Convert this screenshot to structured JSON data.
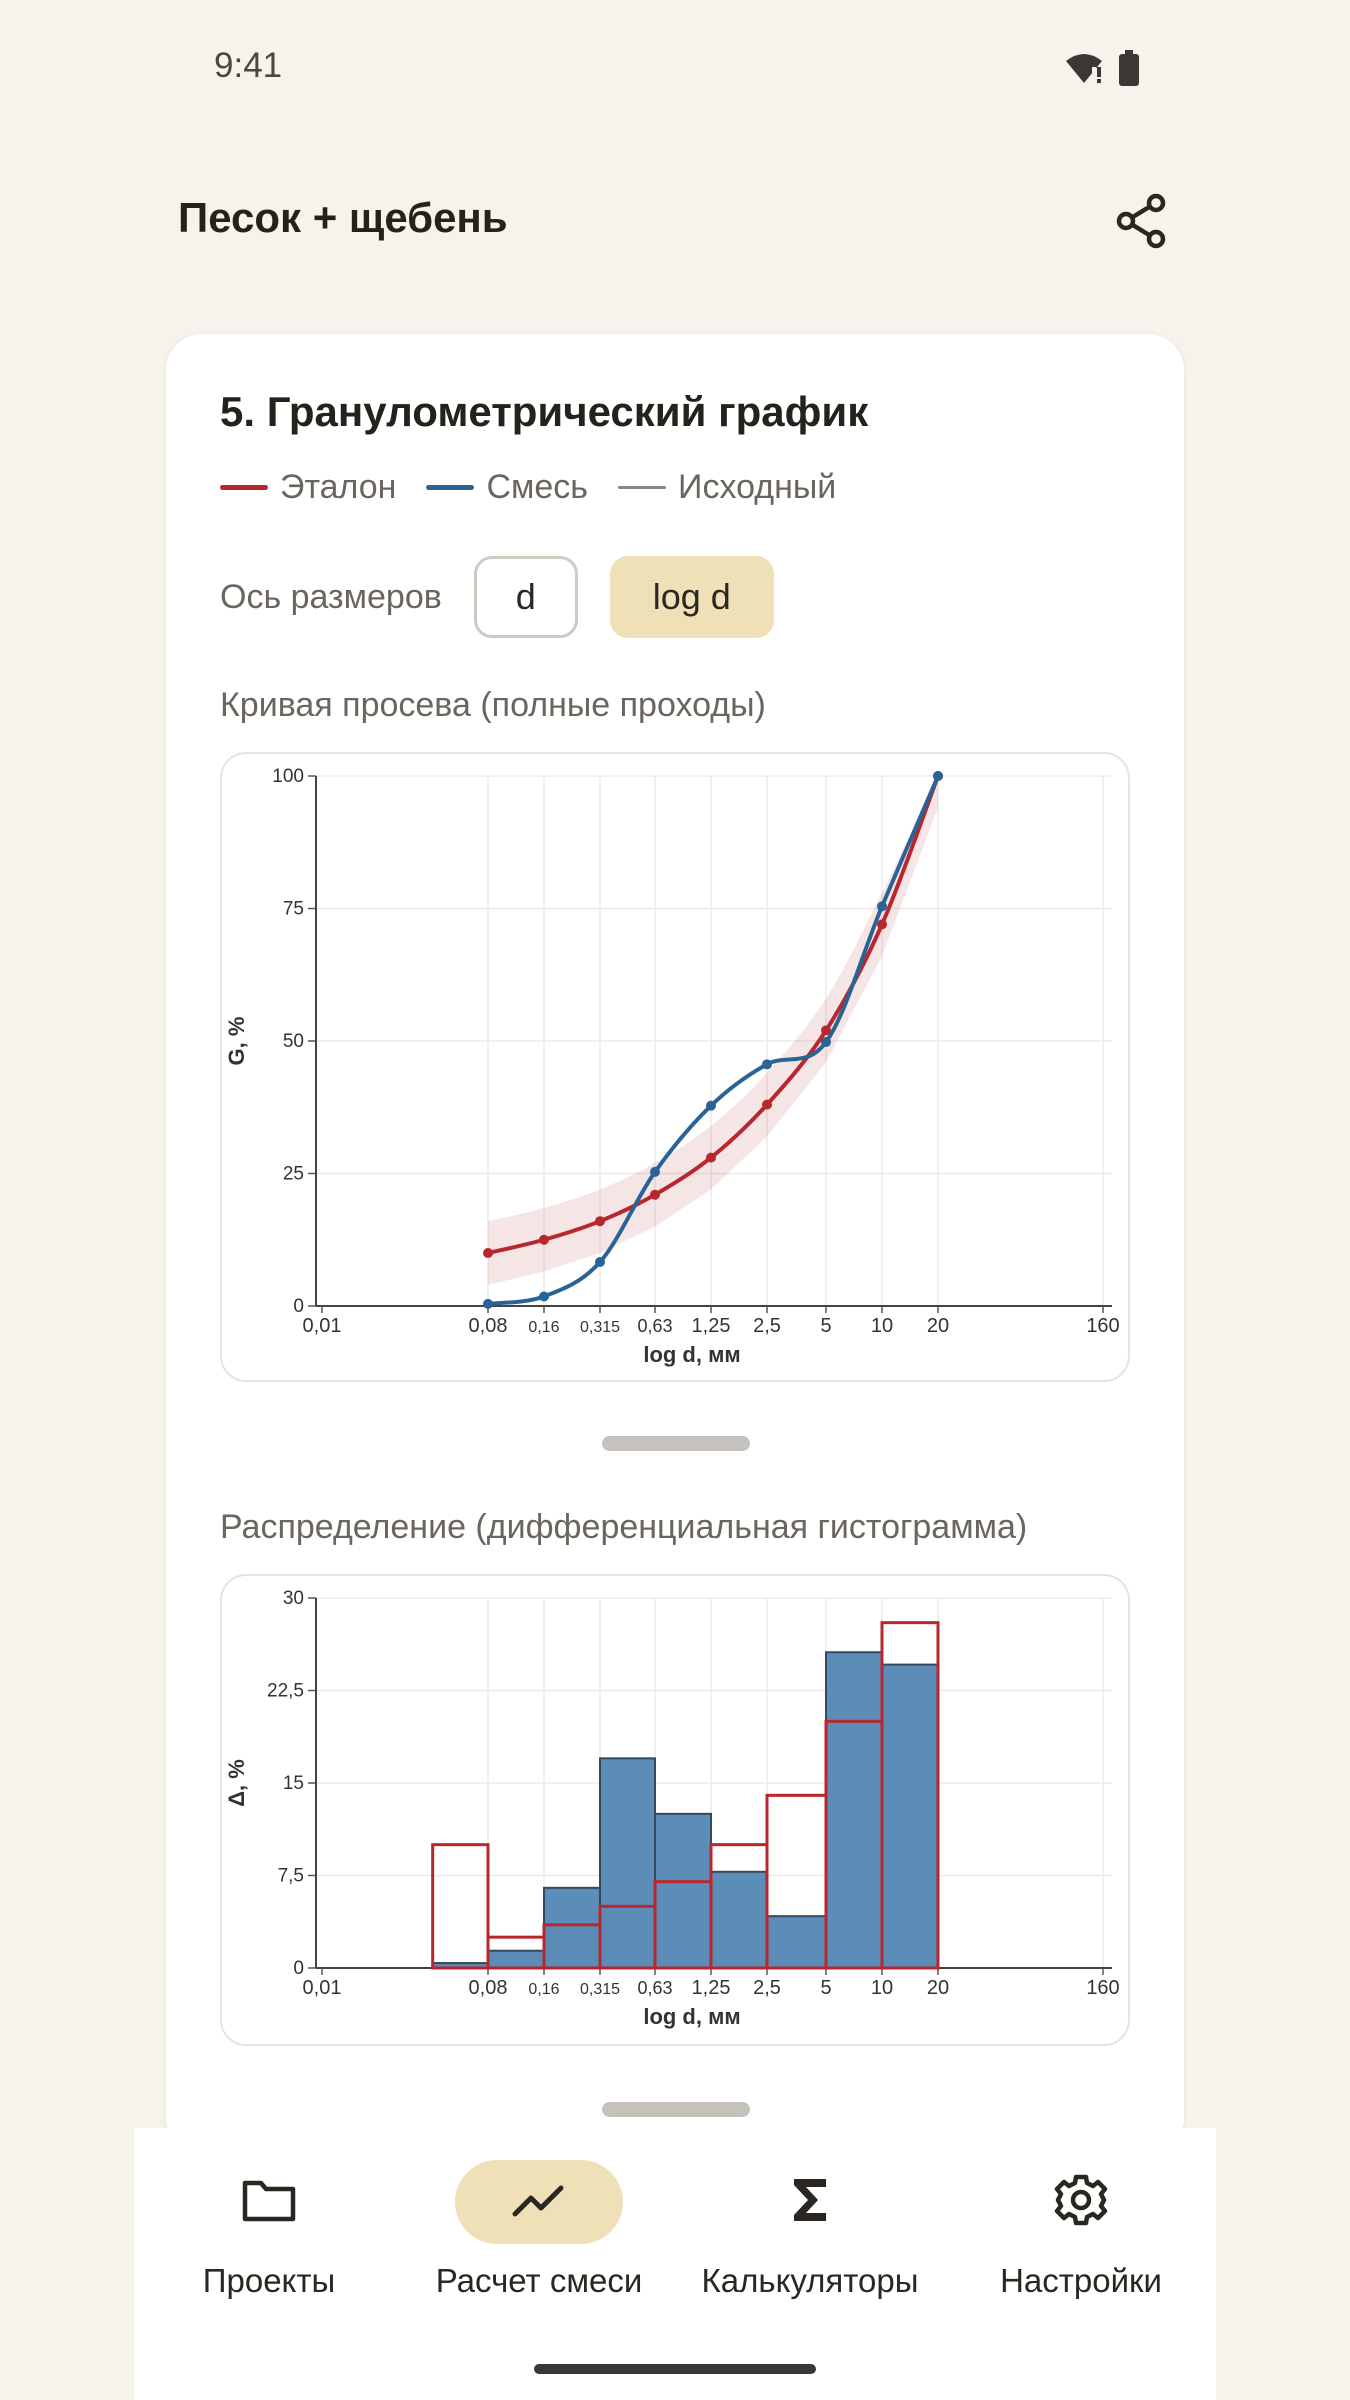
{
  "status_bar": {
    "time": "9:41",
    "icons": [
      "wifi-alert-icon",
      "battery-icon"
    ]
  },
  "app_bar": {
    "title": "Песок + щебень",
    "action_icon": "share-icon"
  },
  "section": {
    "title": "5. Гранулометрический график",
    "legend": [
      {
        "label": "Эталон",
        "color": "#b8272d"
      },
      {
        "label": "Смесь",
        "color": "#2a6496"
      },
      {
        "label": "Исходный",
        "color": "#8a8782"
      }
    ],
    "axis_toggle": {
      "label": "Ось размеров",
      "options": [
        "d",
        "log d"
      ],
      "selected": "log d"
    }
  },
  "charts": {
    "sieve_curve_title": "Кривая просева (полные проходы)",
    "histogram_title": "Распределение (дифференциальная гистограмма)"
  },
  "chart_data": [
    {
      "type": "line",
      "xlabel": "log d, мм",
      "ylabel": "G, %",
      "x_scale": "log",
      "x_ticks": [
        "0,01",
        "0,08",
        "0,16",
        "0,315",
        "0,63",
        "1,25",
        "2,5",
        "5",
        "10",
        "20",
        "160"
      ],
      "y_ticks": [
        "0",
        "25",
        "50",
        "75",
        "100"
      ],
      "ylim": [
        0,
        100
      ],
      "grid": true,
      "series": [
        {
          "name": "Эталон",
          "color": "#b8272d",
          "band": true,
          "points": [
            {
              "x": 0.08,
              "y": 10
            },
            {
              "x": 0.16,
              "y": 12.5
            },
            {
              "x": 0.315,
              "y": 16
            },
            {
              "x": 0.63,
              "y": 21
            },
            {
              "x": 1.25,
              "y": 28
            },
            {
              "x": 2.5,
              "y": 38
            },
            {
              "x": 5,
              "y": 52
            },
            {
              "x": 10,
              "y": 72
            },
            {
              "x": 20,
              "y": 100
            }
          ]
        },
        {
          "name": "Смесь",
          "color": "#2a6496",
          "points": [
            {
              "x": 0.08,
              "y": 0.4
            },
            {
              "x": 0.16,
              "y": 1.8
            },
            {
              "x": 0.315,
              "y": 8.3
            },
            {
              "x": 0.63,
              "y": 25.3
            },
            {
              "x": 1.25,
              "y": 37.8
            },
            {
              "x": 2.5,
              "y": 45.6
            },
            {
              "x": 5,
              "y": 49.8
            },
            {
              "x": 10,
              "y": 75.4
            },
            {
              "x": 20,
              "y": 100
            }
          ]
        }
      ]
    },
    {
      "type": "bar",
      "xlabel": "log d, мм",
      "ylabel": "Δ, %",
      "x_scale": "log",
      "x_ticks": [
        "0,01",
        "0,08",
        "0,16",
        "0,315",
        "0,63",
        "1,25",
        "2,5",
        "5",
        "10",
        "20",
        "160"
      ],
      "y_ticks": [
        "0",
        "7,5",
        "15",
        "22,5",
        "30"
      ],
      "ylim": [
        0,
        30
      ],
      "grid": true,
      "bins": [
        [
          0.04,
          0.08
        ],
        [
          0.08,
          0.16
        ],
        [
          0.16,
          0.315
        ],
        [
          0.315,
          0.63
        ],
        [
          0.63,
          1.25
        ],
        [
          1.25,
          2.5
        ],
        [
          2.5,
          5
        ],
        [
          5,
          10
        ],
        [
          10,
          20
        ],
        [
          20,
          40
        ]
      ],
      "series": [
        {
          "name": "Смесь",
          "color": "#5b8db8",
          "values": [
            0.4,
            1.4,
            6.5,
            17,
            12.5,
            7.8,
            4.2,
            25.6,
            24.6,
            0
          ]
        },
        {
          "name": "Эталон",
          "color": "#b8272d",
          "values": [
            10,
            2.5,
            3.5,
            5,
            7,
            10,
            14,
            20,
            28,
            0
          ]
        }
      ]
    }
  ],
  "nav": {
    "items": [
      {
        "label": "Проекты",
        "icon": "folder-icon",
        "active": false
      },
      {
        "label": "Расчет смеси",
        "icon": "trend-chart-icon",
        "active": true
      },
      {
        "label": "Калькуляторы",
        "icon": "sigma-icon",
        "active": false
      },
      {
        "label": "Настройки",
        "icon": "gear-icon",
        "active": false
      }
    ]
  }
}
